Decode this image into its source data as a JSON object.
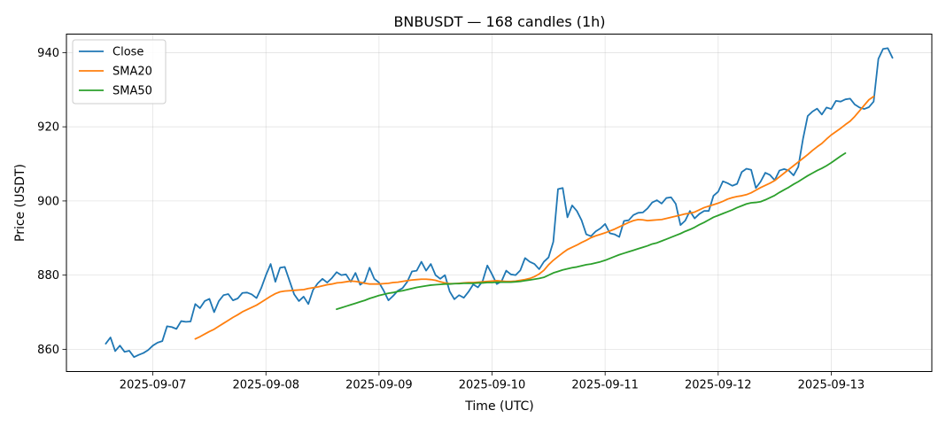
{
  "chart_data": {
    "type": "line",
    "title": "BNBUSDT — 168 candles (1h)",
    "xlabel": "Time (UTC)",
    "ylabel": "Price (USDT)",
    "x_range": [
      "2025-09-06 14:00",
      "2025-09-13 13:00"
    ],
    "x_ticks": [
      "2025-09-07",
      "2025-09-08",
      "2025-09-09",
      "2025-09-10",
      "2025-09-11",
      "2025-09-12",
      "2025-09-13"
    ],
    "ylim": [
      854,
      945
    ],
    "y_ticks": [
      860,
      880,
      900,
      920,
      940
    ],
    "grid": true,
    "legend_position": "top-left",
    "series": [
      {
        "name": "Close",
        "color": "#1f77b4",
        "start": "2025-09-06 14:00",
        "interval_hours": 1,
        "values": [
          861.5,
          863.2,
          859.5,
          861.0,
          859.3,
          859.6,
          857.9,
          858.5,
          859.0,
          859.8,
          861.0,
          861.8,
          862.2,
          866.2,
          866.0,
          865.5,
          867.6,
          867.4,
          867.5,
          872.2,
          871.1,
          873.0,
          873.6,
          870.0,
          873.0,
          874.6,
          874.9,
          873.2,
          873.7,
          875.2,
          875.3,
          874.8,
          873.8,
          876.5,
          880.0,
          883.0,
          878.2,
          882.0,
          882.2,
          878.5,
          874.8,
          873.0,
          874.2,
          872.2,
          876.0,
          877.8,
          879.0,
          878.0,
          879.2,
          880.8,
          880.0,
          880.2,
          878.2,
          880.6,
          877.4,
          878.3,
          882.0,
          879.0,
          878.0,
          875.8,
          873.2,
          874.4,
          875.8,
          876.5,
          878.2,
          881.0,
          881.2,
          883.6,
          881.2,
          883.0,
          880.0,
          879.0,
          880.0,
          875.6,
          873.5,
          874.6,
          873.9,
          875.5,
          877.5,
          876.7,
          878.4,
          882.6,
          880.2,
          877.6,
          878.3,
          881.2,
          880.2,
          880.0,
          881.3,
          884.6,
          883.6,
          883.0,
          881.6,
          883.6,
          884.8,
          889.0,
          903.2,
          903.5,
          895.6,
          898.8,
          897.3,
          894.8,
          891.0,
          890.5,
          891.8,
          892.6,
          893.8,
          891.3,
          891.0,
          890.3,
          894.6,
          894.8,
          896.2,
          896.8,
          896.9,
          898.0,
          899.6,
          900.2,
          899.3,
          900.8,
          901.0,
          899.2,
          893.5,
          894.7,
          897.3,
          895.3,
          896.5,
          897.3,
          897.3,
          901.4,
          902.5,
          905.3,
          904.8,
          904.1,
          904.6,
          907.8,
          908.7,
          908.4,
          903.5,
          905.2,
          907.6,
          907.0,
          905.6,
          908.2,
          908.6,
          908.2,
          906.9,
          909.2,
          916.7,
          922.9,
          924.1,
          924.9,
          923.3,
          925.2,
          924.8,
          927.0,
          926.8,
          927.4,
          927.6,
          926.0,
          925.2,
          924.8,
          925.3,
          926.8,
          938.3,
          941.0,
          941.2,
          938.6
        ]
      },
      {
        "name": "SMA20",
        "color": "#ff7f0e",
        "start": "2025-09-07 09:00",
        "interval_hours": 1,
        "values": [
          862.8,
          863.4,
          864.1,
          864.8,
          865.4,
          866.2,
          867.0,
          867.8,
          868.6,
          869.3,
          870.1,
          870.7,
          871.3,
          871.9,
          872.7,
          873.5,
          874.3,
          875.0,
          875.5,
          875.7,
          875.8,
          875.9,
          876.0,
          876.1,
          876.4,
          876.6,
          876.8,
          877.1,
          877.4,
          877.6,
          877.9,
          878.0,
          878.2,
          878.4,
          878.3,
          878.1,
          877.8,
          877.6,
          877.6,
          877.6,
          877.7,
          877.8,
          878.0,
          878.1,
          878.3,
          878.5,
          878.7,
          878.8,
          878.9,
          878.9,
          878.8,
          878.6,
          878.2,
          877.9,
          877.7,
          877.7,
          877.8,
          877.9,
          878.0,
          878.0,
          878.1,
          878.2,
          878.3,
          878.4,
          878.5,
          878.4,
          878.3,
          878.3,
          878.4,
          878.6,
          878.8,
          879.1,
          879.6,
          880.3,
          881.3,
          882.8,
          884.0,
          885.0,
          886.0,
          886.9,
          887.5,
          888.1,
          888.8,
          889.4,
          890.1,
          890.6,
          891.0,
          891.4,
          891.9,
          892.4,
          893.0,
          893.6,
          894.2,
          894.7,
          895.0,
          894.9,
          894.7,
          894.8,
          894.9,
          895.0,
          895.3,
          895.6,
          895.9,
          896.2,
          896.5,
          896.7,
          897.0,
          897.6,
          898.2,
          898.6,
          899.0,
          899.4,
          899.9,
          900.5,
          900.9,
          901.2,
          901.4,
          901.7,
          902.2,
          902.9,
          903.6,
          904.2,
          904.8,
          905.5,
          906.5,
          907.5,
          908.5,
          909.5,
          910.5,
          911.5,
          912.5,
          913.6,
          914.6,
          915.5,
          916.7,
          917.8,
          918.7,
          919.6,
          920.6,
          921.5,
          922.8,
          924.3,
          925.8,
          927.3,
          928.2
        ]
      },
      {
        "name": "SMA50",
        "color": "#2ca02c",
        "start": "2025-09-08 15:00",
        "interval_hours": 1,
        "values": [
          870.8,
          871.2,
          871.6,
          872.0,
          872.4,
          872.8,
          873.2,
          873.7,
          874.1,
          874.5,
          874.8,
          875.1,
          875.3,
          875.6,
          875.8,
          876.1,
          876.4,
          876.7,
          876.9,
          877.1,
          877.3,
          877.4,
          877.5,
          877.6,
          877.6,
          877.7,
          877.7,
          877.8,
          877.8,
          877.8,
          877.9,
          877.9,
          878.0,
          878.0,
          878.1,
          878.1,
          878.1,
          878.1,
          878.2,
          878.3,
          878.5,
          878.7,
          878.9,
          879.1,
          879.4,
          880.0,
          880.6,
          881.0,
          881.4,
          881.7,
          882.0,
          882.2,
          882.5,
          882.8,
          883.0,
          883.3,
          883.6,
          884.0,
          884.5,
          885.0,
          885.5,
          885.9,
          886.3,
          886.7,
          887.1,
          887.5,
          887.9,
          888.4,
          888.7,
          889.2,
          889.7,
          890.2,
          890.7,
          891.2,
          891.8,
          892.3,
          892.9,
          893.6,
          894.2,
          894.9,
          895.6,
          896.1,
          896.6,
          897.1,
          897.6,
          898.2,
          898.7,
          899.2,
          899.5,
          899.6,
          899.8,
          900.3,
          900.9,
          901.5,
          902.3,
          903.0,
          903.7,
          904.5,
          905.2,
          906.0,
          906.8,
          907.5,
          908.2,
          908.8,
          909.5,
          910.3,
          911.2,
          912.1,
          912.9
        ]
      }
    ]
  }
}
